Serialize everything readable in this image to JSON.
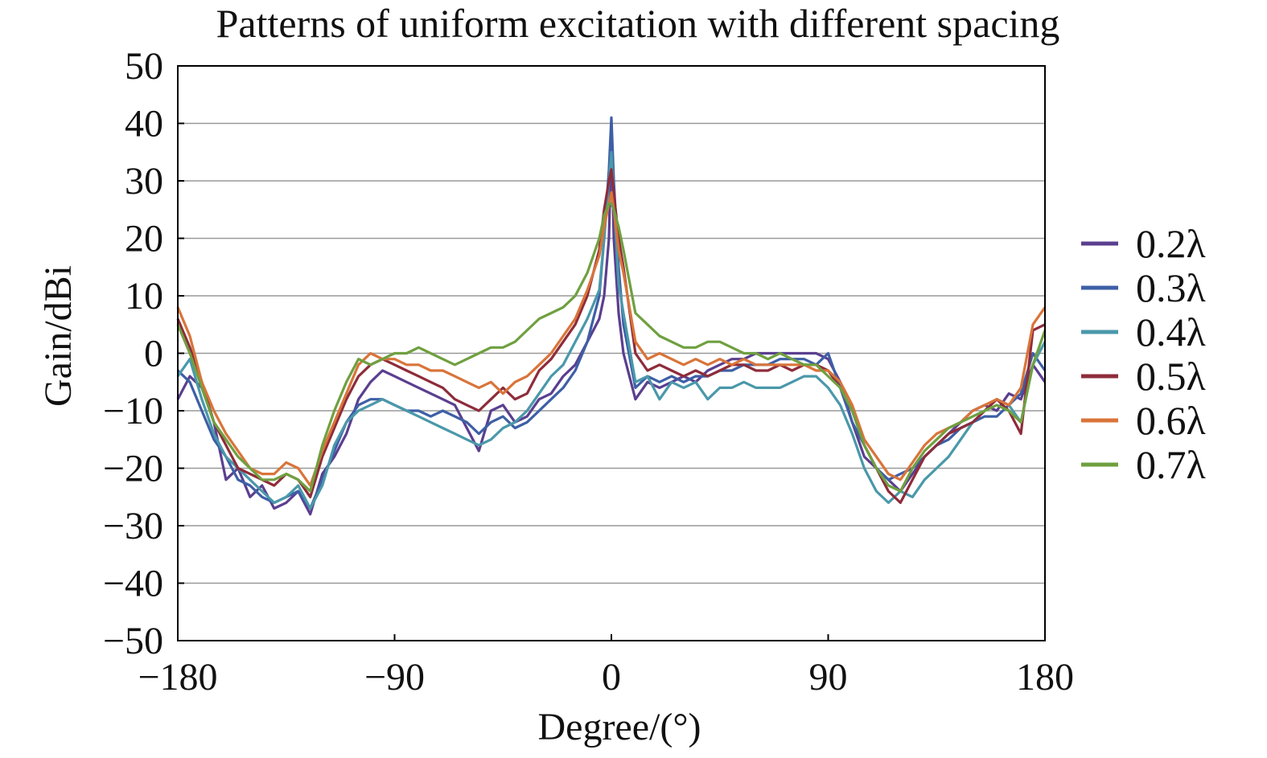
{
  "chart_data": {
    "type": "line",
    "title": "Patterns of uniform excitation with different spacing",
    "xlabel": "Degree/(°)",
    "ylabel": "Gain/dBi",
    "xlim": [
      -180,
      180
    ],
    "ylim": [
      -50,
      50
    ],
    "x_ticks": [
      -180,
      -90,
      0,
      90,
      180
    ],
    "x_tick_labels": [
      "−180",
      "−90",
      "0",
      "90",
      "180"
    ],
    "y_ticks": [
      50,
      40,
      30,
      20,
      10,
      0,
      -10,
      -20,
      -30,
      -40,
      -50
    ],
    "y_tick_labels": [
      "50",
      "40",
      "30",
      "20",
      "10",
      "0",
      "−10",
      "−20",
      "−30",
      "−40",
      "−50"
    ],
    "grid": "horizontal",
    "legend_position": "right",
    "x": [
      -180,
      -175,
      -170,
      -165,
      -160,
      -155,
      -150,
      -145,
      -140,
      -135,
      -130,
      -125,
      -120,
      -115,
      -110,
      -105,
      -100,
      -95,
      -90,
      -85,
      -80,
      -75,
      -70,
      -65,
      -60,
      -55,
      -50,
      -45,
      -40,
      -35,
      -30,
      -25,
      -20,
      -15,
      -10,
      -5,
      -3,
      -1,
      0,
      1,
      3,
      5,
      10,
      15,
      20,
      25,
      30,
      35,
      40,
      45,
      50,
      55,
      60,
      65,
      70,
      75,
      80,
      85,
      90,
      95,
      100,
      105,
      110,
      115,
      120,
      125,
      130,
      135,
      140,
      145,
      150,
      155,
      160,
      165,
      170,
      175,
      180
    ],
    "series": [
      {
        "name": "0.2λ",
        "color": "#5b3f8f",
        "values": [
          -8,
          -4,
          -6,
          -12,
          -22,
          -20,
          -25,
          -23,
          -27,
          -26,
          -24,
          -28,
          -21,
          -18,
          -14,
          -8,
          -5,
          -3,
          -4,
          -5,
          -6,
          -7,
          -8,
          -9,
          -13,
          -17,
          -10,
          -9,
          -12,
          -11,
          -8,
          -7,
          -4,
          -2,
          2,
          6,
          10,
          20,
          38,
          20,
          7,
          0,
          -8,
          -5,
          -6,
          -5,
          -4,
          -5,
          -3,
          -2,
          -1,
          -1,
          0,
          0,
          0,
          0,
          0,
          0,
          -1,
          -5,
          -12,
          -18,
          -20,
          -22,
          -24,
          -21,
          -18,
          -16,
          -14,
          -12,
          -10,
          -9,
          -10,
          -7,
          -8,
          -2,
          -5
        ]
      },
      {
        "name": "0.3λ",
        "color": "#3d5fa6",
        "values": [
          -3,
          -5,
          -10,
          -15,
          -18,
          -22,
          -23,
          -25,
          -26,
          -25,
          -24,
          -27,
          -22,
          -17,
          -12,
          -9,
          -8,
          -8,
          -9,
          -10,
          -10,
          -11,
          -10,
          -11,
          -12,
          -14,
          -12,
          -11,
          -13,
          -12,
          -10,
          -8,
          -6,
          -3,
          2,
          10,
          20,
          32,
          41,
          30,
          15,
          5,
          -6,
          -4,
          -5,
          -4,
          -5,
          -4,
          -4,
          -3,
          -3,
          -2,
          -2,
          -2,
          -1,
          -1,
          -1,
          -2,
          0,
          -6,
          -12,
          -16,
          -20,
          -22,
          -21,
          -20,
          -18,
          -16,
          -15,
          -13,
          -12,
          -11,
          -11,
          -9,
          -7,
          0,
          -3
        ]
      },
      {
        "name": "0.4λ",
        "color": "#4a98aa",
        "values": [
          -4,
          -1,
          -8,
          -14,
          -18,
          -20,
          -22,
          -24,
          -26,
          -25,
          -23,
          -27,
          -23,
          -16,
          -12,
          -10,
          -9,
          -8,
          -9,
          -10,
          -11,
          -12,
          -13,
          -14,
          -15,
          -16,
          -15,
          -13,
          -12,
          -10,
          -7,
          -4,
          -2,
          2,
          6,
          11,
          20,
          30,
          35,
          27,
          12,
          7,
          -5,
          -4,
          -8,
          -5,
          -6,
          -5,
          -8,
          -6,
          -6,
          -5,
          -6,
          -6,
          -6,
          -5,
          -4,
          -4,
          -6,
          -9,
          -14,
          -20,
          -24,
          -26,
          -24,
          -25,
          -22,
          -20,
          -18,
          -15,
          -12,
          -10,
          -8,
          -9,
          -12,
          -2,
          2
        ]
      },
      {
        "name": "0.5λ",
        "color": "#8e2c3a",
        "values": [
          6,
          1,
          -5,
          -12,
          -16,
          -20,
          -21,
          -22,
          -23,
          -21,
          -22,
          -25,
          -18,
          -13,
          -8,
          -4,
          -2,
          -1,
          -2,
          -3,
          -4,
          -5,
          -6,
          -8,
          -9,
          -10,
          -8,
          -6,
          -8,
          -7,
          -3,
          -1,
          2,
          5,
          10,
          18,
          25,
          30,
          32,
          28,
          20,
          15,
          0,
          -3,
          -2,
          -3,
          -4,
          -3,
          -4,
          -3,
          -2,
          -2,
          -3,
          -3,
          -2,
          -3,
          -2,
          -2,
          -3,
          -6,
          -10,
          -16,
          -20,
          -24,
          -26,
          -22,
          -18,
          -16,
          -14,
          -13,
          -12,
          -10,
          -8,
          -10,
          -14,
          4,
          5
        ]
      },
      {
        "name": "0.6λ",
        "color": "#d9743a",
        "values": [
          8,
          3,
          -5,
          -10,
          -14,
          -17,
          -20,
          -21,
          -21,
          -19,
          -20,
          -23,
          -17,
          -12,
          -7,
          -2,
          0,
          -1,
          -1,
          -2,
          -2,
          -3,
          -3,
          -4,
          -5,
          -6,
          -5,
          -7,
          -5,
          -4,
          -2,
          0,
          3,
          6,
          11,
          17,
          22,
          26,
          28,
          25,
          18,
          14,
          2,
          -1,
          0,
          -1,
          -2,
          -1,
          -2,
          -1,
          -2,
          -1,
          -2,
          -2,
          -2,
          -2,
          -2,
          -3,
          -3,
          -5,
          -9,
          -15,
          -18,
          -21,
          -22,
          -19,
          -16,
          -14,
          -13,
          -12,
          -10,
          -9,
          -8,
          -9,
          -6,
          5,
          8
        ]
      },
      {
        "name": "0.7λ",
        "color": "#6fa040",
        "values": [
          5,
          0,
          -6,
          -12,
          -15,
          -18,
          -20,
          -22,
          -22,
          -21,
          -22,
          -24,
          -16,
          -10,
          -5,
          -1,
          -2,
          -1,
          0,
          0,
          1,
          0,
          -1,
          -2,
          -1,
          0,
          1,
          1,
          2,
          4,
          6,
          7,
          8,
          10,
          14,
          20,
          24,
          26,
          26,
          25,
          22,
          18,
          7,
          5,
          3,
          2,
          1,
          1,
          2,
          2,
          1,
          0,
          0,
          -1,
          0,
          -1,
          -2,
          -2,
          -4,
          -6,
          -10,
          -16,
          -20,
          -23,
          -24,
          -20,
          -17,
          -15,
          -13,
          -12,
          -11,
          -10,
          -9,
          -10,
          -12,
          -2,
          4
        ]
      }
    ]
  }
}
